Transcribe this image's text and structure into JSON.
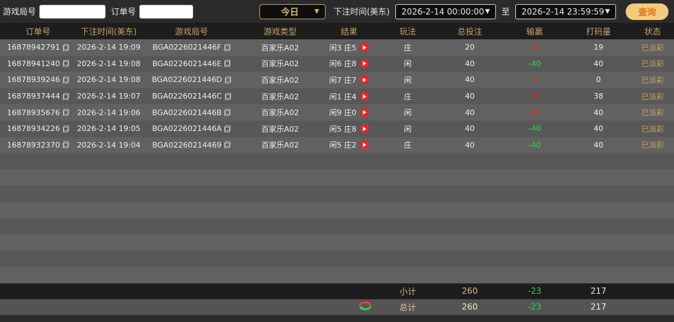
{
  "filter_bar": {
    "game_round_label": "游戏局号",
    "order_no_label": "订单号",
    "today_dropdown": "今日",
    "bet_time_label": "下注时间(美东)",
    "date_from": "2026-2-14 00:00:00",
    "to_label": "至",
    "date_to": "2026-2-14 23:59:59",
    "query_button": "查询",
    "dropdown_arrow": "▼"
  },
  "table": {
    "headers": [
      "订单号",
      "下注时间(美东)",
      "游戏局号",
      "游戏类型",
      "结果",
      "玩法",
      "总投注",
      "输赢",
      "打码量",
      "状态"
    ],
    "rows": [
      {
        "order_no": "16878942791",
        "bet_time": "2026-2-14 19:09",
        "round": "BGA0226021446F",
        "game_type": "百家乐A02",
        "result": "闲3 庄5",
        "play": "庄",
        "total_bet": "20",
        "win_loss": "19",
        "win_loss_color": "red",
        "turnover": "19",
        "status": "已派彩"
      },
      {
        "order_no": "16878941240",
        "bet_time": "2026-2-14 19:08",
        "round": "BGA0226021446E",
        "game_type": "百家乐A02",
        "result": "闲6 庄8",
        "play": "闲",
        "total_bet": "40",
        "win_loss": "-40",
        "win_loss_color": "green",
        "turnover": "40",
        "status": "已派彩"
      },
      {
        "order_no": "16878939246",
        "bet_time": "2026-2-14 19:08",
        "round": "BGA0226021446D",
        "game_type": "百家乐A02",
        "result": "闲7 庄7",
        "play": "闲",
        "total_bet": "40",
        "win_loss": "0",
        "win_loss_color": "red",
        "turnover": "0",
        "status": "已派彩"
      },
      {
        "order_no": "16878937444",
        "bet_time": "2026-2-14 19:07",
        "round": "BGA0226021446C",
        "game_type": "百家乐A02",
        "result": "闲1 庄4",
        "play": "庄",
        "total_bet": "40",
        "win_loss": "38",
        "win_loss_color": "red",
        "turnover": "38",
        "status": "已派彩"
      },
      {
        "order_no": "16878935676",
        "bet_time": "2026-2-14 19:06",
        "round": "BGA0226021446B",
        "game_type": "百家乐A02",
        "result": "闲9 庄0",
        "play": "闲",
        "total_bet": "40",
        "win_loss": "40",
        "win_loss_color": "red",
        "turnover": "40",
        "status": "已派彩"
      },
      {
        "order_no": "16878934226",
        "bet_time": "2026-2-14 19:05",
        "round": "BGA0226021446A",
        "game_type": "百家乐A02",
        "result": "闲5 庄8",
        "play": "闲",
        "total_bet": "40",
        "win_loss": "-40",
        "win_loss_color": "green",
        "turnover": "40",
        "status": "已派彩"
      },
      {
        "order_no": "16878932370",
        "bet_time": "2026-2-14 19:04",
        "round": "BGA02260214469",
        "game_type": "百家乐A02",
        "result": "闲5 庄2",
        "play": "庄",
        "total_bet": "40",
        "win_loss": "-40",
        "win_loss_color": "green",
        "turnover": "40",
        "status": "已派彩"
      }
    ],
    "empty_row_count": 8,
    "subtotal": {
      "label": "小计",
      "total_bet": "260",
      "win_loss": "-23",
      "turnover": "217"
    },
    "total": {
      "label": "总计",
      "total_bet": "260",
      "win_loss": "-23",
      "turnover": "217"
    }
  },
  "colors": {
    "accent_gold": "#c6a368",
    "win_red": "#d93025",
    "loss_green": "#2ed14e",
    "row_light": "#616161",
    "row_dark": "#585858",
    "header_bg": "#1d1d1d",
    "query_btn_bg": "#f2cb7e",
    "query_btn_text": "#e0761a",
    "play_btn_red": "#e02b2b"
  }
}
